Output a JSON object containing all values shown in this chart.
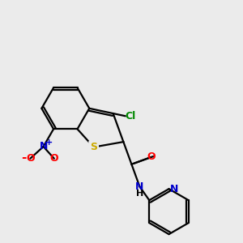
{
  "background_color": "#ebebeb",
  "figsize": [
    3.0,
    3.0
  ],
  "dpi": 100,
  "atom_colors": {
    "C": "#000000",
    "N": "#0000cc",
    "O": "#ff0000",
    "S": "#ccaa00",
    "Cl": "#008800",
    "H": "#000000"
  },
  "lw": 1.6,
  "fontsize": 9
}
